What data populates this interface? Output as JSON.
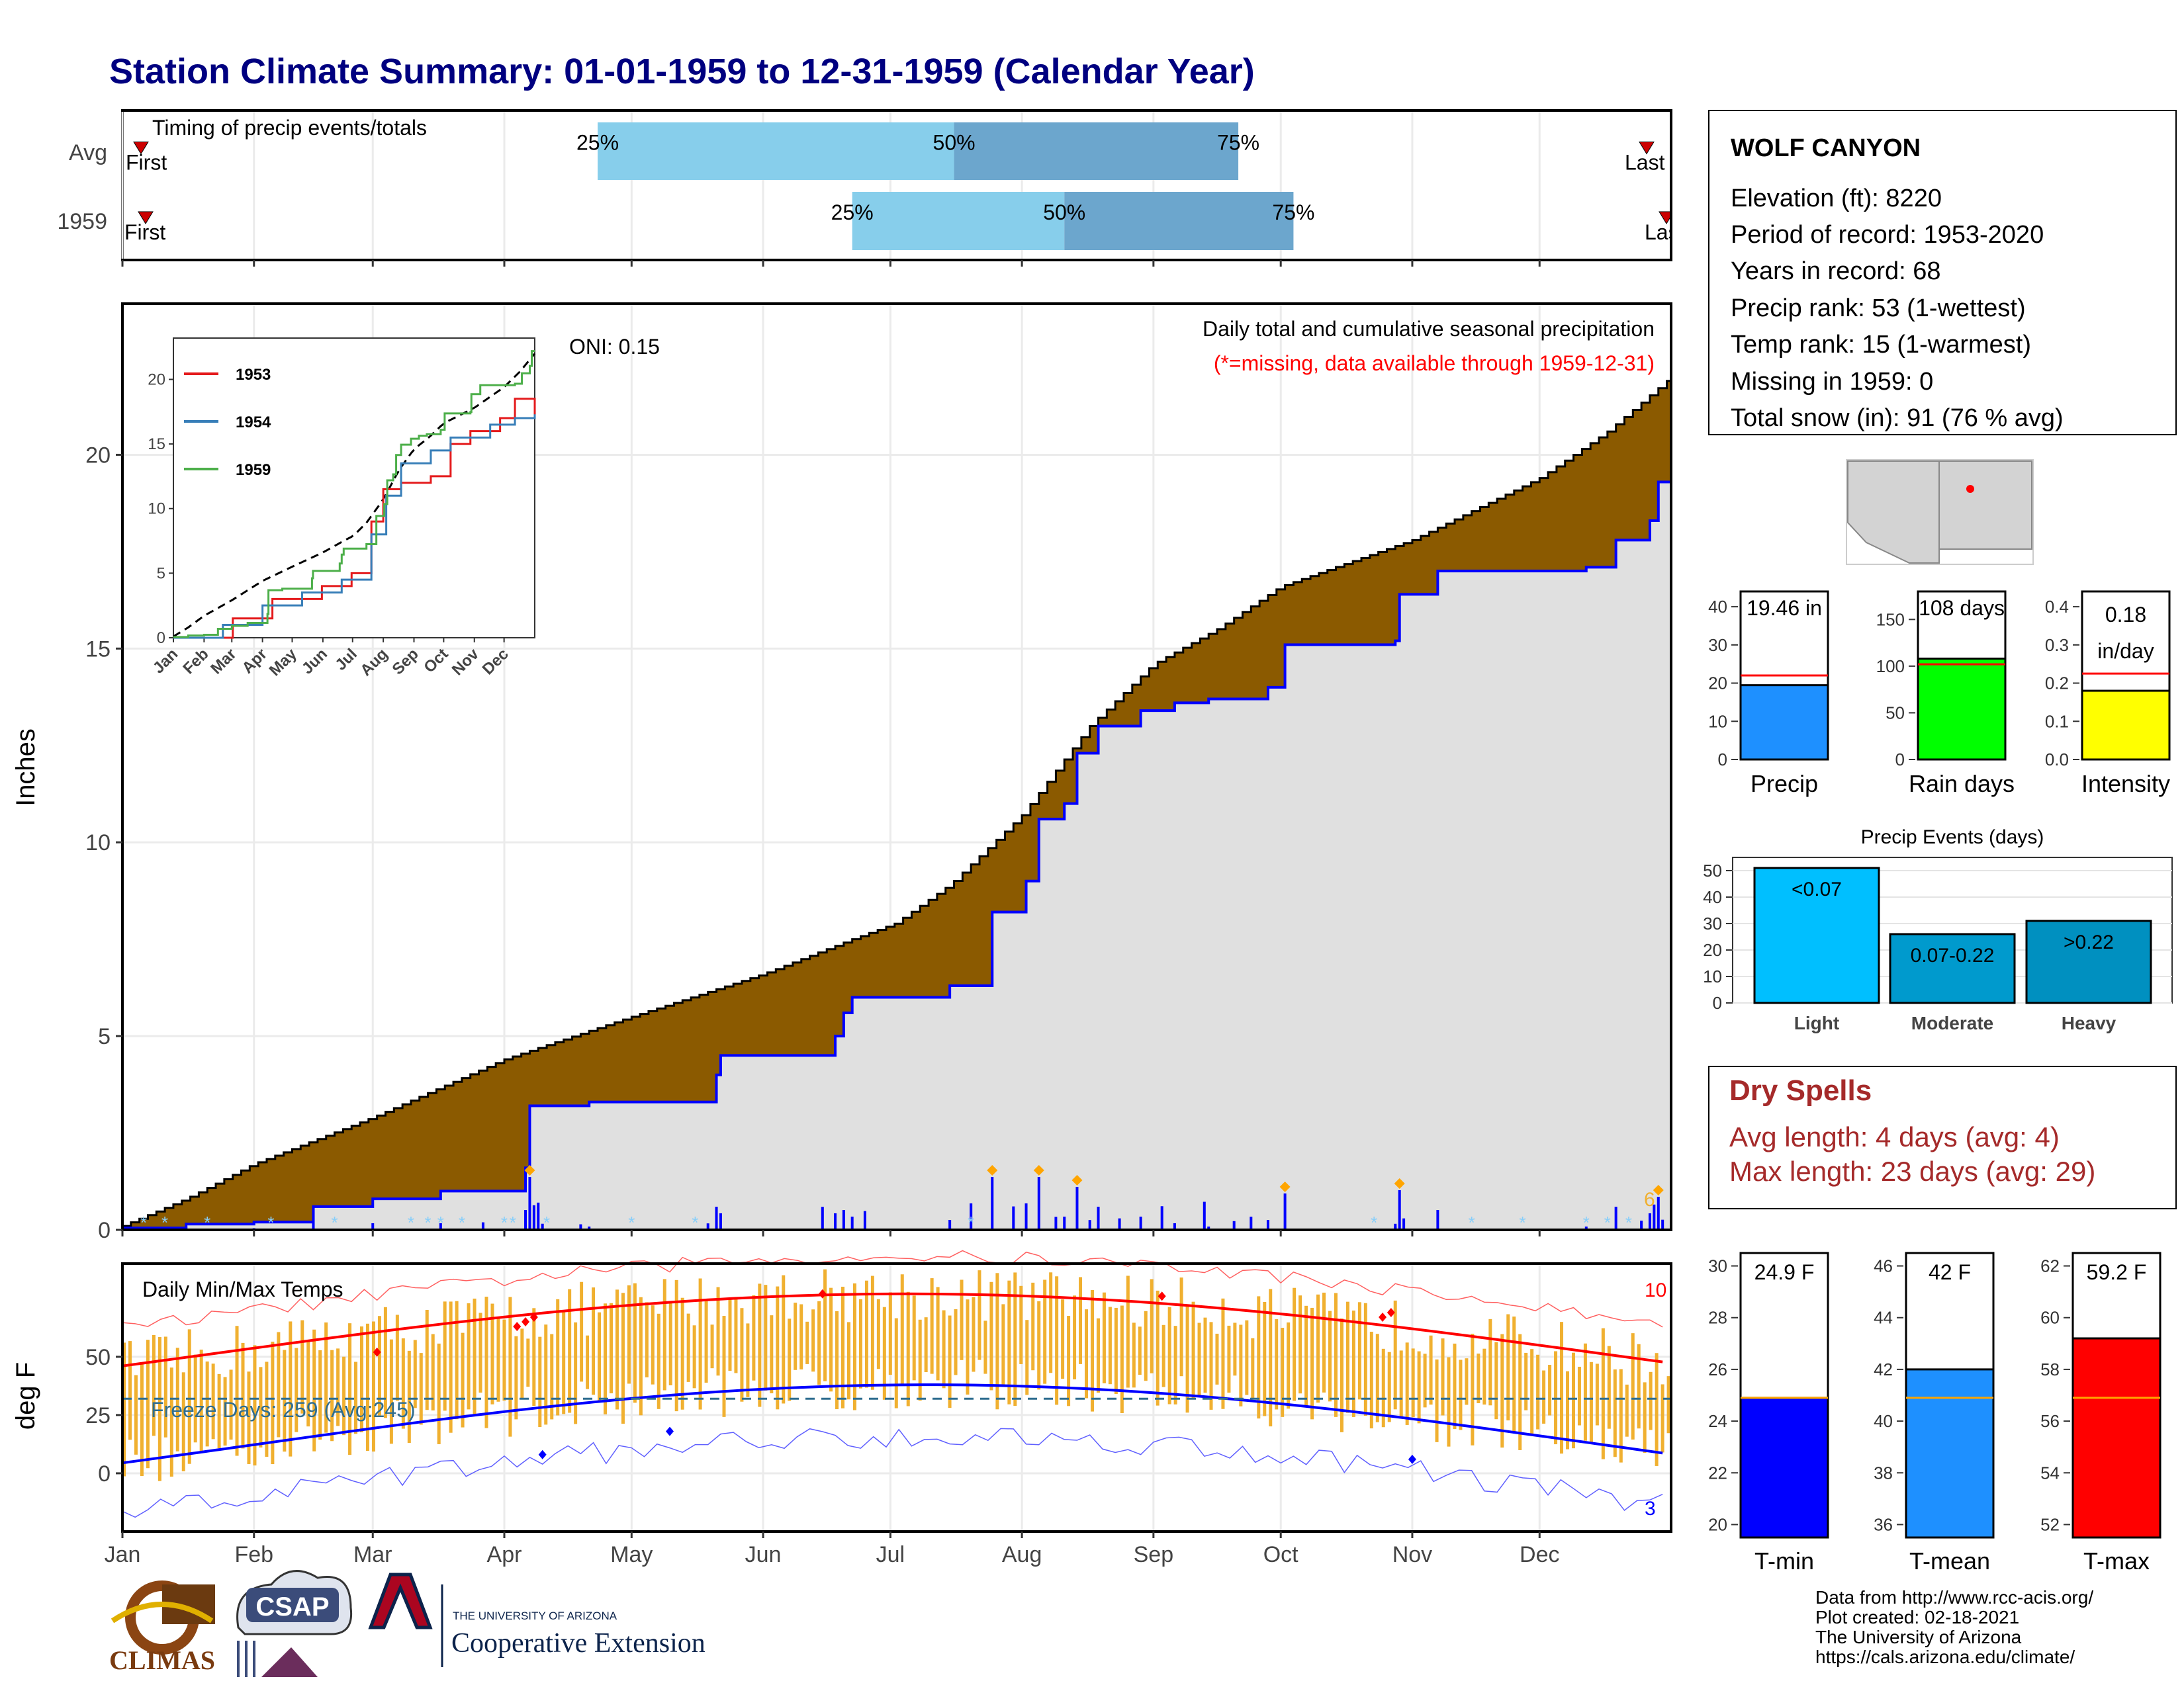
{
  "title": "Station Climate Summary: 01-01-1959 to 12-31-1959 (Calendar Year)",
  "months": [
    "Jan",
    "Feb",
    "Mar",
    "Apr",
    "May",
    "Jun",
    "Jul",
    "Aug",
    "Sep",
    "Oct",
    "Nov",
    "Dec"
  ],
  "timing": {
    "label": "Timing of precip events/totals",
    "rows": [
      {
        "name": "Avg",
        "q25_doy": 112,
        "q50_doy": 196,
        "q75_doy": 263,
        "first": "First",
        "last": "Last",
        "labels": [
          "25%",
          "50%",
          "75%"
        ]
      },
      {
        "name": "1959",
        "q25_doy": 172,
        "q50_doy": 222,
        "q75_doy": 276,
        "first": "First",
        "last": "Last",
        "labels": [
          "25%",
          "50%",
          "75%"
        ]
      }
    ]
  },
  "precip_panel": {
    "ylabel": "Inches",
    "yticks": [
      0,
      5,
      10,
      15,
      20
    ],
    "ylim": [
      0,
      23.9
    ],
    "title": "Daily total and cumulative seasonal precipitation",
    "subtitle": "(*=missing, data available through 1959-12-31)",
    "oni": "ONI: 0.15",
    "max_daily_label": "6",
    "avg_cumulative": [
      [
        0,
        0.1
      ],
      [
        15,
        0.8
      ],
      [
        31,
        1.7
      ],
      [
        59,
        2.9
      ],
      [
        90,
        4.4
      ],
      [
        120,
        5.5
      ],
      [
        151,
        6.6
      ],
      [
        172,
        7.5
      ],
      [
        182,
        7.9
      ],
      [
        195,
        8.9
      ],
      [
        212,
        10.7
      ],
      [
        228,
        13.0
      ],
      [
        243,
        14.6
      ],
      [
        258,
        15.5
      ],
      [
        273,
        16.6
      ],
      [
        304,
        17.8
      ],
      [
        334,
        19.4
      ],
      [
        350,
        20.6
      ],
      [
        365,
        22.0
      ]
    ],
    "cum_1959": [
      [
        0,
        0.05
      ],
      [
        15,
        0.15
      ],
      [
        31,
        0.2
      ],
      [
        45,
        0.6
      ],
      [
        59,
        0.8
      ],
      [
        75,
        1.0
      ],
      [
        95,
        1.6
      ],
      [
        96,
        3.2
      ],
      [
        110,
        3.3
      ],
      [
        140,
        4.0
      ],
      [
        141,
        4.5
      ],
      [
        168,
        5.0
      ],
      [
        170,
        5.6
      ],
      [
        172,
        6.0
      ],
      [
        185,
        6.0
      ],
      [
        195,
        6.3
      ],
      [
        205,
        8.2
      ],
      [
        213,
        9.0
      ],
      [
        216,
        10.6
      ],
      [
        222,
        11.0
      ],
      [
        225,
        12.3
      ],
      [
        230,
        13.0
      ],
      [
        240,
        13.4
      ],
      [
        248,
        13.6
      ],
      [
        256,
        13.7
      ],
      [
        270,
        14.0
      ],
      [
        274,
        15.1
      ],
      [
        300,
        15.2
      ],
      [
        301,
        16.4
      ],
      [
        310,
        17.0
      ],
      [
        345,
        17.1
      ],
      [
        352,
        17.8
      ],
      [
        360,
        18.3
      ],
      [
        362,
        19.3
      ],
      [
        365,
        19.3
      ]
    ],
    "inset": {
      "yticks": [
        0,
        5,
        10,
        15,
        20
      ],
      "xticks": [
        "Jan",
        "Feb",
        "Mar",
        "Apr",
        "May",
        "Jun",
        "Jul",
        "Aug",
        "Sep",
        "Oct",
        "Nov",
        "Dec"
      ],
      "legend": [
        {
          "name": "1953",
          "color": "#e41a1c"
        },
        {
          "name": "1954",
          "color": "#377eb8"
        },
        {
          "name": "1959",
          "color": "#4daf4a"
        }
      ]
    }
  },
  "temp_panel": {
    "ylabel": "deg F",
    "label": "Daily Min/Max Temps",
    "yticks": [
      0,
      25,
      50
    ],
    "ylim": [
      -25,
      90
    ],
    "freeze_days": "Freeze Days: 259 (Avg:245)",
    "max_count": "10",
    "min_count": "3"
  },
  "station": {
    "name": "WOLF CANYON",
    "lines": [
      "Elevation (ft): 8220",
      "Period of record: 1953-2020",
      "Years in record: 68",
      "Precip rank: 53 (1-wettest)",
      "Temp rank: 15 (1-warmest)",
      "Missing in 1959: 0",
      "Total snow (in): 91 (76 % avg)"
    ]
  },
  "bars_top": [
    {
      "name": "Precip",
      "label": "19.46 in",
      "value": 19.46,
      "avg": 22.0,
      "yticks": [
        0,
        10,
        20,
        30,
        40
      ],
      "ymax": 44,
      "color": "#1e90ff"
    },
    {
      "name": "Rain days",
      "label": "108 days",
      "value": 108,
      "avg": 102,
      "yticks": [
        0,
        50,
        100,
        150
      ],
      "ymax": 180,
      "color": "#00ff00"
    },
    {
      "name": "Intensity",
      "label1": "0.18",
      "label2": "in/day",
      "value": 0.18,
      "avg": 0.225,
      "yticks": [
        "0.0",
        "0.1",
        "0.2",
        "0.3",
        "0.4"
      ],
      "ymax": 0.44,
      "color": "#ffff00"
    }
  ],
  "precip_events": {
    "title": "Precip Events (days)",
    "yticks": [
      0,
      10,
      20,
      30,
      40,
      50
    ],
    "ymax": 55,
    "categories": [
      "Light",
      "Moderate",
      "Heavy"
    ],
    "values": [
      51,
      26,
      31
    ],
    "labels": [
      "<0.07",
      "0.07-0.22",
      ">0.22"
    ],
    "colors": [
      "#00bfff",
      "#009acd",
      "#0090c0"
    ]
  },
  "dry_spells": {
    "title": "Dry Spells",
    "avg_line": "Avg length: 4 days (avg: 4)",
    "max_line": "Max length: 23 days (avg: 29)"
  },
  "temp_bars": [
    {
      "name": "T-min",
      "label": "24.9 F",
      "value": 24.9,
      "avg": 24.9,
      "ymin": 19.5,
      "ymax": 30.5,
      "yticks": [
        20,
        22,
        24,
        26,
        28,
        30
      ],
      "color": "#0000ff"
    },
    {
      "name": "T-mean",
      "label": "42 F",
      "value": 42.0,
      "avg": 40.9,
      "ymin": 35.5,
      "ymax": 46.5,
      "yticks": [
        36,
        38,
        40,
        42,
        44,
        46
      ],
      "color": "#1e90ff"
    },
    {
      "name": "T-max",
      "label": "59.2 F",
      "value": 59.2,
      "avg": 56.9,
      "ymin": 51.5,
      "ymax": 62.5,
      "yticks": [
        52,
        54,
        56,
        58,
        60,
        62
      ],
      "color": "#ff0000"
    }
  ],
  "footer": {
    "lines": [
      "Data from http://www.rcc-acis.org/",
      "Plot created: 02-18-2021",
      "The University of Arizona",
      "https://cals.arizona.edu/climate/"
    ],
    "logos": {
      "climas": "CLIMAS",
      "csap": "CSAP",
      "ua_line1": "THE UNIVERSITY OF ARIZONA",
      "ua_line2": "Cooperative Extension"
    }
  },
  "colors": {
    "title": "#000080",
    "brown": "#8B5A00",
    "gray_fill": "#e0e0e0",
    "blue": "#0000ff",
    "orange": "#f0b030",
    "red": "#ff0000",
    "dryspell": "#a52a2a"
  }
}
